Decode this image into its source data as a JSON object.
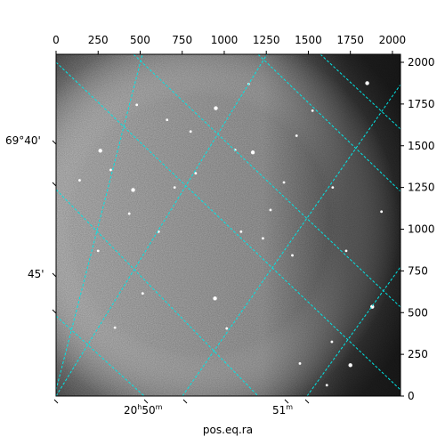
{
  "figure": {
    "xlabel": "pos.eq.ra",
    "pixel_axis": {
      "x_range": [
        0,
        2048
      ],
      "y_range": [
        0,
        2048
      ],
      "top_ticks": [
        "0",
        "250",
        "500",
        "750",
        "1000",
        "1250",
        "1500",
        "1750",
        "2000"
      ],
      "right_ticks": [
        "0",
        "250",
        "500",
        "750",
        "1000",
        "1250",
        "1500",
        "1750",
        "2000"
      ]
    },
    "ra_ticks": [
      {
        "h": "20",
        "hsup": "h",
        "m": "50",
        "msup": "m"
      },
      {
        "h": "",
        "hsup": "",
        "m": "51",
        "msup": "m"
      }
    ],
    "dec_ticks": [
      "69°40'",
      "45'"
    ],
    "grid_color": "#00e5e5",
    "stars": [
      {
        "x": 263,
        "y": 1470
      },
      {
        "x": 140,
        "y": 1293
      },
      {
        "x": 435,
        "y": 1093
      },
      {
        "x": 1065,
        "y": 1475
      },
      {
        "x": 325,
        "y": 1355
      },
      {
        "x": 458,
        "y": 1235
      },
      {
        "x": 1230,
        "y": 945
      },
      {
        "x": 1405,
        "y": 843
      },
      {
        "x": 1640,
        "y": 325
      },
      {
        "x": 1450,
        "y": 195
      },
      {
        "x": 1750,
        "y": 185
      },
      {
        "x": 1725,
        "y": 870
      },
      {
        "x": 800,
        "y": 1585
      },
      {
        "x": 660,
        "y": 1655
      },
      {
        "x": 1145,
        "y": 1870
      },
      {
        "x": 950,
        "y": 1725
      },
      {
        "x": 480,
        "y": 1745
      },
      {
        "x": 705,
        "y": 1250
      },
      {
        "x": 1100,
        "y": 985
      },
      {
        "x": 1355,
        "y": 1280
      },
      {
        "x": 945,
        "y": 585
      },
      {
        "x": 515,
        "y": 615
      },
      {
        "x": 1015,
        "y": 405
      },
      {
        "x": 1275,
        "y": 1115
      },
      {
        "x": 1525,
        "y": 1710
      },
      {
        "x": 1850,
        "y": 1875
      },
      {
        "x": 1935,
        "y": 1105
      },
      {
        "x": 830,
        "y": 1335
      },
      {
        "x": 610,
        "y": 985
      },
      {
        "x": 1645,
        "y": 1250
      },
      {
        "x": 1880,
        "y": 535
      },
      {
        "x": 1430,
        "y": 1560
      },
      {
        "x": 350,
        "y": 410
      },
      {
        "x": 250,
        "y": 870
      },
      {
        "x": 1610,
        "y": 65
      },
      {
        "x": 1170,
        "y": 1460
      }
    ]
  }
}
